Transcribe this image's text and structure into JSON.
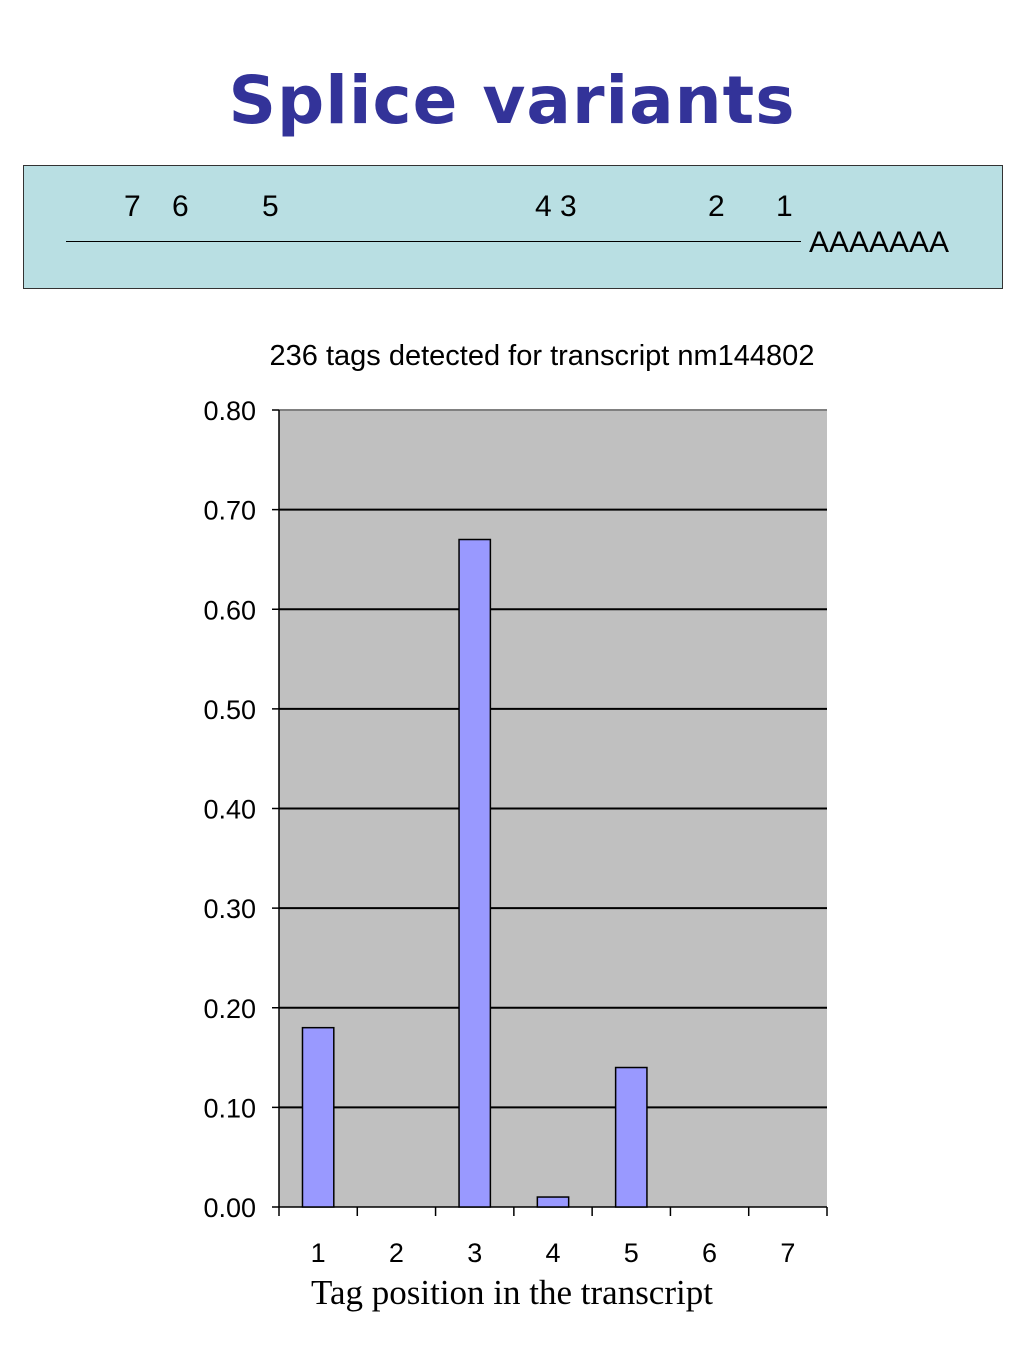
{
  "slide": {
    "title": "Splice variants"
  },
  "transcript": {
    "positions": [
      "7",
      "6",
      "5",
      "4 3",
      "2",
      "1"
    ],
    "polya": "AAAAAAA"
  },
  "colors": {
    "title": "#333399",
    "bar": "#9999ff",
    "plot_bg": "#c0c0c0",
    "box_bg": "#b9dfe3"
  },
  "chart_data": {
    "type": "bar",
    "title": "236 tags detected for transcript nm144802",
    "xlabel": "Tag position in the transcript",
    "ylabel": "",
    "categories": [
      "1",
      "2",
      "3",
      "4",
      "5",
      "6",
      "7"
    ],
    "values": [
      0.18,
      0,
      0.67,
      0.01,
      0.14,
      0,
      0
    ],
    "ylim": [
      0,
      0.8
    ],
    "yticks": [
      "0.00",
      "0.10",
      "0.20",
      "0.30",
      "0.40",
      "0.50",
      "0.60",
      "0.70",
      "0.80"
    ],
    "grid": true,
    "legend": "none"
  }
}
